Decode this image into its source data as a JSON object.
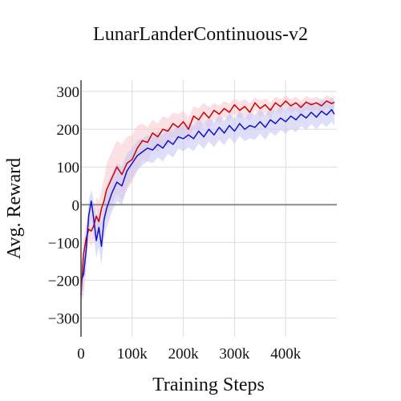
{
  "chart_data": {
    "type": "line",
    "title": "LunarLanderContinuous-v2",
    "xlabel": "Training Steps",
    "ylabel": "Avg. Reward",
    "xlim": [
      0,
      500000
    ],
    "ylim": [
      -350,
      330
    ],
    "xticks": [
      0,
      100000,
      200000,
      300000,
      400000
    ],
    "xtick_labels": [
      "0",
      "100k",
      "200k",
      "300k",
      "400k"
    ],
    "yticks": [
      -300,
      -200,
      -100,
      0,
      100,
      200,
      300
    ],
    "ytick_labels": [
      "−300",
      "−200",
      "−100",
      "0",
      "100",
      "200",
      "300"
    ],
    "grid": true,
    "legend": "none",
    "colors": {
      "red_line": "#cc0000",
      "red_band": "#f7c7cd",
      "blue_line": "#1010cc",
      "blue_band": "#c8c8f5",
      "zero_line": "#8a8a8a"
    },
    "series": [
      {
        "color": "red",
        "x": [
          0,
          5000,
          10000,
          15000,
          20000,
          25000,
          30000,
          35000,
          40000,
          45000,
          50000,
          60000,
          70000,
          80000,
          90000,
          100000,
          110000,
          120000,
          130000,
          140000,
          150000,
          160000,
          170000,
          180000,
          190000,
          200000,
          210000,
          220000,
          230000,
          240000,
          250000,
          260000,
          270000,
          280000,
          290000,
          300000,
          310000,
          320000,
          330000,
          340000,
          350000,
          360000,
          370000,
          380000,
          390000,
          400000,
          410000,
          420000,
          430000,
          440000,
          450000,
          460000,
          470000,
          480000,
          490000,
          495000
        ],
        "y": [
          -240,
          -130,
          -90,
          -65,
          -70,
          -55,
          -30,
          -45,
          -10,
          10,
          40,
          70,
          100,
          80,
          110,
          120,
          150,
          170,
          165,
          190,
          180,
          200,
          195,
          215,
          205,
          220,
          200,
          235,
          225,
          245,
          230,
          250,
          240,
          255,
          245,
          265,
          250,
          260,
          245,
          270,
          255,
          265,
          250,
          270,
          260,
          275,
          262,
          270,
          258,
          272,
          265,
          270,
          262,
          275,
          268,
          272
        ],
        "upper": [
          -190,
          -90,
          -50,
          -30,
          -30,
          -10,
          20,
          10,
          40,
          70,
          110,
          140,
          170,
          160,
          180,
          185,
          210,
          215,
          205,
          225,
          215,
          235,
          230,
          245,
          240,
          250,
          230,
          260,
          255,
          270,
          258,
          270,
          262,
          275,
          268,
          283,
          272,
          280,
          268,
          285,
          276,
          282,
          270,
          286,
          280,
          290,
          280,
          286,
          276,
          288,
          282,
          286,
          278,
          290,
          284,
          288
        ],
        "lower": [
          -280,
          -170,
          -130,
          -100,
          -110,
          -95,
          -80,
          -95,
          -60,
          -50,
          -30,
          0,
          30,
          10,
          40,
          60,
          90,
          120,
          115,
          150,
          140,
          160,
          155,
          180,
          170,
          185,
          165,
          205,
          195,
          215,
          200,
          225,
          215,
          232,
          220,
          243,
          225,
          238,
          222,
          252,
          232,
          245,
          228,
          252,
          240,
          258,
          242,
          252,
          238,
          254,
          246,
          252,
          244,
          258,
          250,
          255
        ]
      },
      {
        "color": "blue",
        "x": [
          0,
          5000,
          10000,
          15000,
          20000,
          25000,
          30000,
          35000,
          40000,
          45000,
          50000,
          60000,
          70000,
          80000,
          90000,
          100000,
          110000,
          120000,
          130000,
          140000,
          150000,
          160000,
          170000,
          180000,
          190000,
          200000,
          210000,
          220000,
          230000,
          240000,
          250000,
          260000,
          270000,
          280000,
          290000,
          300000,
          310000,
          320000,
          330000,
          340000,
          350000,
          360000,
          370000,
          380000,
          390000,
          400000,
          410000,
          420000,
          430000,
          440000,
          450000,
          460000,
          470000,
          480000,
          490000,
          495000
        ],
        "y": [
          -200,
          -185,
          -120,
          -30,
          10,
          -40,
          -95,
          -60,
          -110,
          -40,
          -10,
          30,
          60,
          50,
          90,
          110,
          130,
          140,
          150,
          145,
          160,
          150,
          170,
          160,
          180,
          175,
          185,
          175,
          195,
          180,
          200,
          185,
          205,
          190,
          210,
          195,
          215,
          200,
          210,
          205,
          220,
          205,
          225,
          215,
          230,
          220,
          235,
          225,
          240,
          230,
          245,
          232,
          248,
          238,
          252,
          240
        ],
        "upper": [
          -150,
          -130,
          -70,
          10,
          40,
          10,
          -40,
          -10,
          -50,
          10,
          40,
          80,
          110,
          100,
          135,
          150,
          170,
          175,
          185,
          180,
          195,
          185,
          205,
          195,
          212,
          208,
          218,
          208,
          228,
          212,
          232,
          218,
          238,
          222,
          242,
          228,
          248,
          232,
          244,
          238,
          252,
          238,
          258,
          248,
          262,
          252,
          268,
          258,
          272,
          262,
          276,
          264,
          280,
          270,
          284,
          272
        ],
        "lower": [
          -260,
          -240,
          -170,
          -80,
          -30,
          -90,
          -140,
          -110,
          -160,
          -90,
          -60,
          -20,
          10,
          0,
          45,
          70,
          90,
          105,
          115,
          110,
          125,
          115,
          135,
          125,
          148,
          142,
          152,
          142,
          162,
          148,
          168,
          152,
          172,
          158,
          178,
          162,
          182,
          168,
          176,
          172,
          188,
          172,
          192,
          182,
          198,
          188,
          202,
          192,
          208,
          198,
          214,
          200,
          216,
          206,
          220,
          208
        ]
      }
    ]
  }
}
